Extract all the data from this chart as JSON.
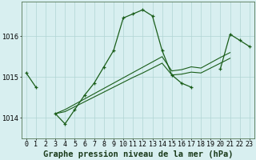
{
  "title": "Graphe pression niveau de la mer (hPa)",
  "x_labels": [
    "0",
    "1",
    "2",
    "3",
    "4",
    "5",
    "6",
    "7",
    "8",
    "9",
    "10",
    "11",
    "12",
    "13",
    "14",
    "15",
    "16",
    "17",
    "18",
    "19",
    "20",
    "21",
    "22",
    "23"
  ],
  "x_values": [
    0,
    1,
    2,
    3,
    4,
    5,
    6,
    7,
    8,
    9,
    10,
    11,
    12,
    13,
    14,
    15,
    16,
    17,
    18,
    19,
    20,
    21,
    22,
    23
  ],
  "main_y": [
    1015.1,
    1014.75,
    null,
    1014.1,
    1013.85,
    1014.2,
    1014.55,
    1014.85,
    1015.25,
    1015.65,
    1016.45,
    1016.55,
    1016.65,
    1016.5,
    1015.65,
    1015.05,
    1014.85,
    1014.75,
    null,
    null,
    1015.2,
    1016.05,
    1015.9,
    1015.75
  ],
  "trend1_y": [
    null,
    null,
    null,
    1014.1,
    1014.15,
    1014.27,
    1014.39,
    1014.51,
    1014.63,
    1014.75,
    1014.87,
    1014.99,
    1015.1,
    1015.22,
    1015.34,
    1015.05,
    1015.07,
    1015.12,
    1015.1,
    1015.22,
    1015.34,
    1015.46,
    null,
    null
  ],
  "trend2_y": [
    null,
    null,
    null,
    1014.1,
    1014.2,
    1014.33,
    1014.46,
    1014.59,
    1014.72,
    1014.85,
    1014.98,
    1015.11,
    1015.24,
    1015.37,
    1015.5,
    1015.15,
    1015.18,
    1015.25,
    1015.22,
    1015.35,
    1015.48,
    1015.6,
    null,
    null
  ],
  "line_color": "#1a5e1a",
  "background_color": "#d8eff0",
  "grid_color": "#b0d4d4",
  "ylim": [
    1013.5,
    1016.85
  ],
  "yticks": [
    1014,
    1015,
    1016
  ],
  "title_fontsize": 7.5,
  "tick_fontsize": 6.0,
  "figsize": [
    3.2,
    2.0
  ],
  "dpi": 100
}
